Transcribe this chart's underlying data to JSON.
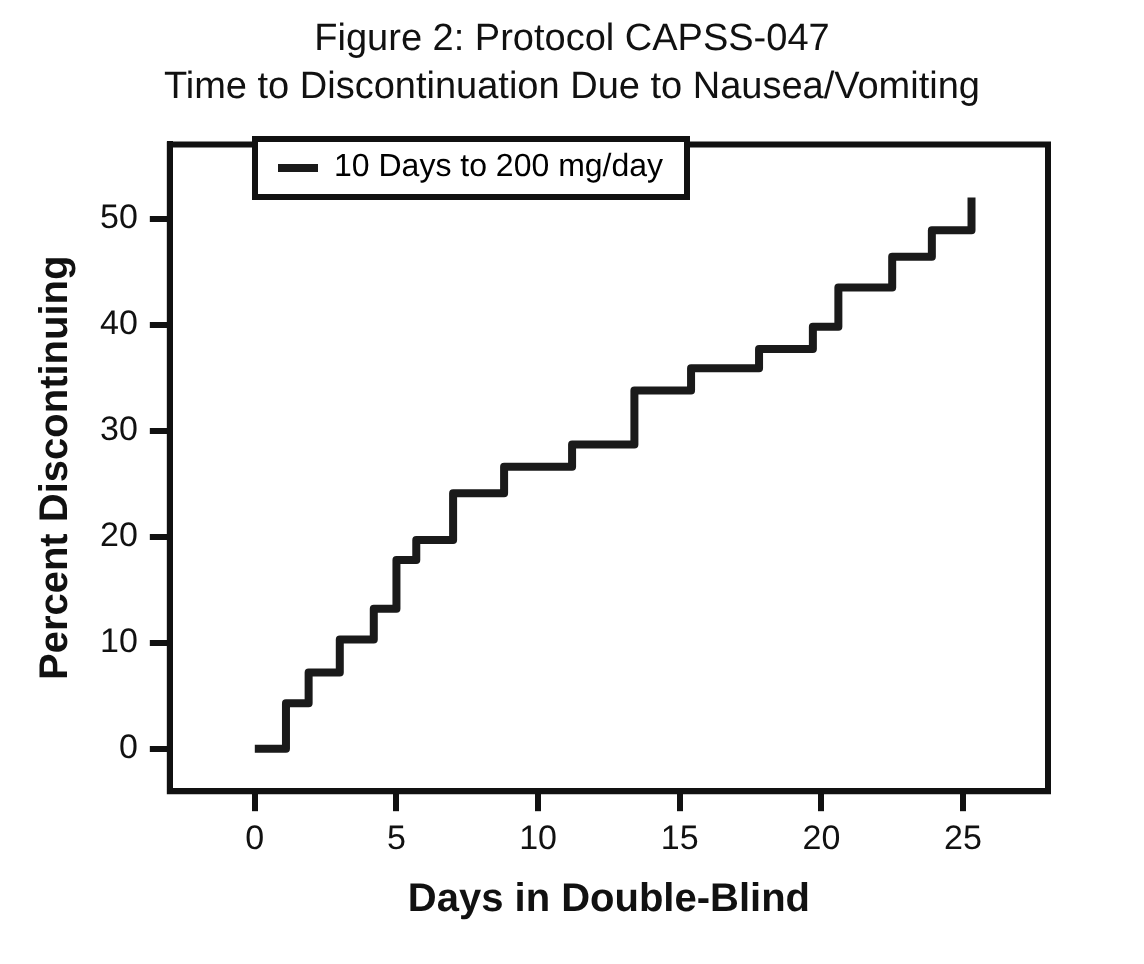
{
  "chart_data": {
    "type": "step",
    "title": "Figure 2: Protocol CAPSS-047",
    "subtitle": "Time to Discontinuation Due to Nausea/Vomiting",
    "xlabel": "Days in Double-Blind",
    "ylabel": "Percent Discontinuing",
    "x": [
      0,
      1.1,
      1.9,
      3.0,
      4.2,
      5.0,
      5.7,
      7.0,
      8.8,
      11.2,
      13.4,
      15.4,
      17.8,
      19.7,
      20.6,
      22.5,
      23.9,
      25.3
    ],
    "series": [
      {
        "name": "10 Days to 200 mg/day",
        "color": "#1a1a1a",
        "values": [
          0,
          4.3,
          7.2,
          10.3,
          13.2,
          17.8,
          19.7,
          24.1,
          26.6,
          28.7,
          33.8,
          35.9,
          37.7,
          39.8,
          43.5,
          46.4,
          48.9,
          52
        ]
      }
    ],
    "xlim": [
      -3,
      28
    ],
    "xticks": [
      0,
      5,
      10,
      15,
      20,
      25
    ],
    "ylim": [
      -4,
      57
    ],
    "yticks": [
      0,
      10,
      20,
      30,
      40,
      50
    ],
    "grid": false,
    "legend": "top left",
    "marker": "none",
    "line_style": "solid"
  }
}
